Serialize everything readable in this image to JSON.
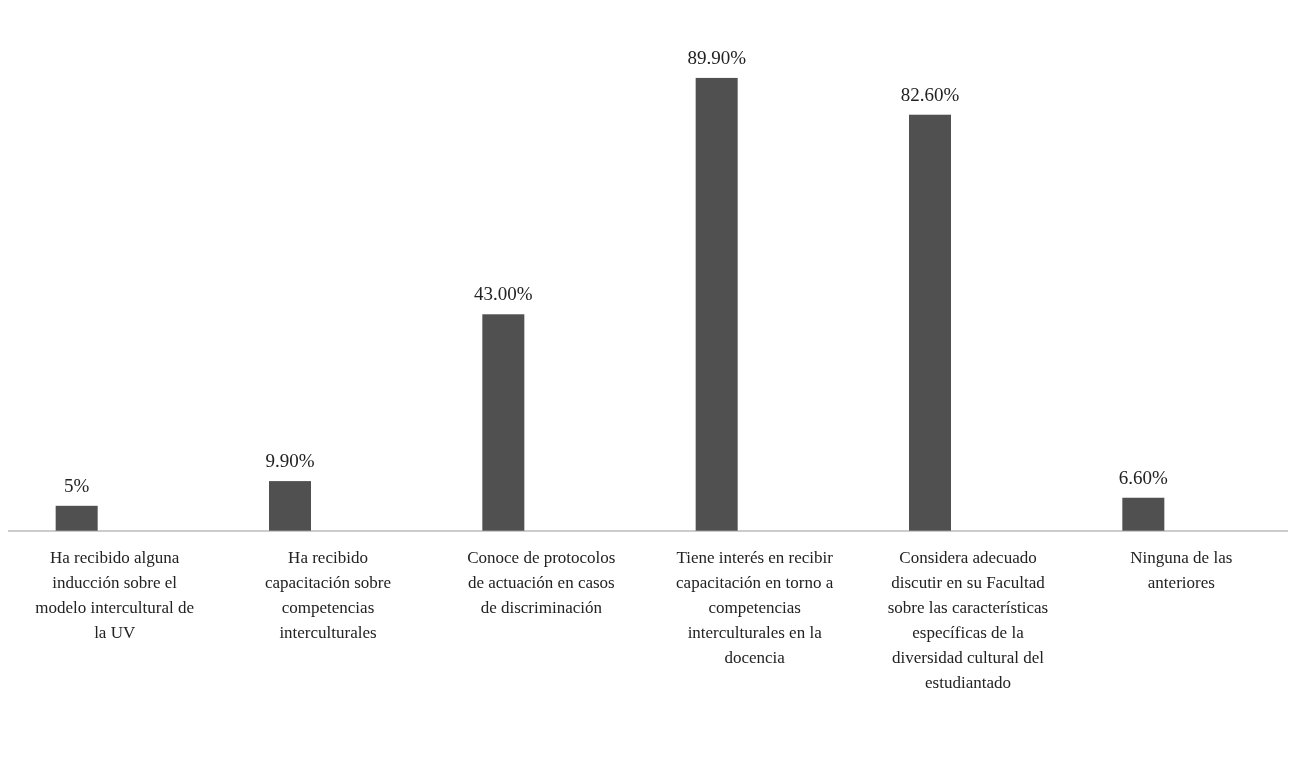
{
  "chart_data": {
    "type": "bar",
    "categories": [
      "Ha recibido alguna inducción sobre el modelo intercultural de la UV",
      "Ha recibido capacitación sobre competencias interculturales",
      "Conoce de protocolos de actuación en casos de discriminación",
      "Tiene interés en recibir capacitación en torno a competencias interculturales en la docencia",
      "Considera adecuado discutir en su Facultad sobre las características específicas de la diversidad cultural del estudiantado",
      "Ninguna de las anteriores"
    ],
    "values": [
      5,
      9.9,
      43,
      89.9,
      82.6,
      6.6
    ],
    "value_labels": [
      "5%",
      "9.90%",
      "43.00%",
      "89.90%",
      "82.60%",
      "6.60%"
    ],
    "color": "#505050"
  }
}
